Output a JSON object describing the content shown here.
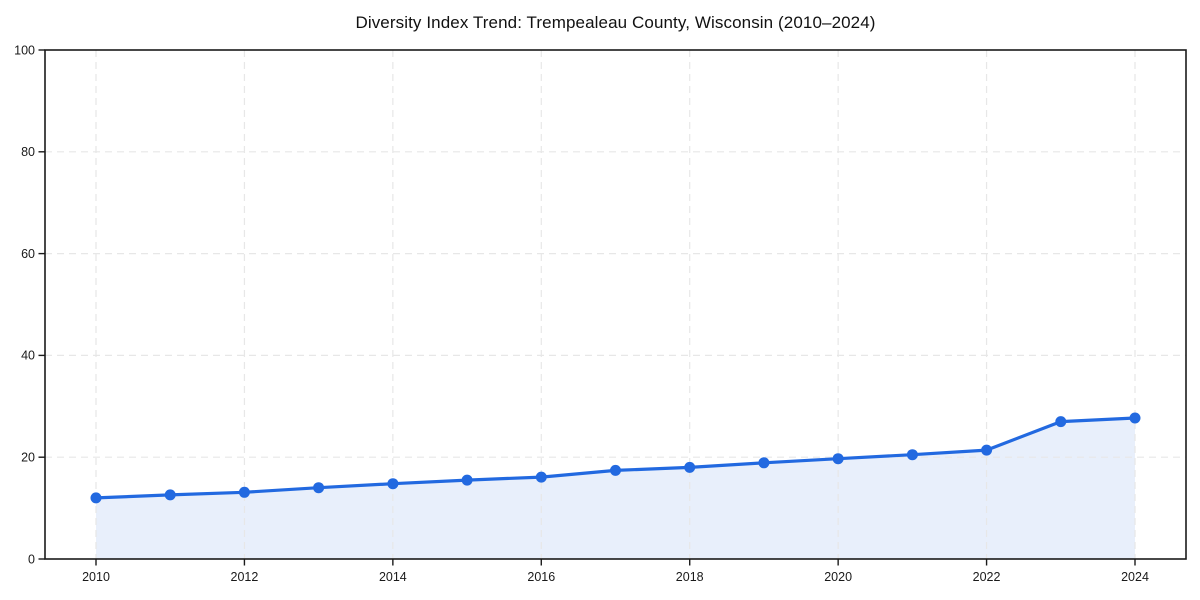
{
  "chart_data": {
    "type": "line",
    "title": "Diversity Index Trend: Trempealeau County, Wisconsin (2010–2024)",
    "xlabel": "",
    "ylabel": "",
    "x": [
      2010,
      2011,
      2012,
      2013,
      2014,
      2015,
      2016,
      2017,
      2018,
      2019,
      2020,
      2021,
      2022,
      2023,
      2024
    ],
    "series": [
      {
        "name": "Diversity Index",
        "values": [
          12.0,
          12.6,
          13.1,
          14.0,
          14.8,
          15.5,
          16.1,
          17.4,
          18.0,
          18.9,
          19.7,
          20.5,
          21.4,
          27.0,
          27.7
        ]
      }
    ],
    "xticks": [
      2010,
      2012,
      2014,
      2016,
      2018,
      2020,
      2022,
      2024
    ],
    "yticks": [
      0,
      20,
      40,
      60,
      80,
      100
    ],
    "xlim": [
      2009.3,
      2024.7
    ],
    "ylim": [
      0,
      100
    ],
    "grid": true,
    "grid_style": "dashed",
    "legend_position": "none",
    "area_under_line": true,
    "marker_shape": "circle",
    "colors": {
      "line": "#2269e0",
      "marker": "#2269e0",
      "area_fill": "#e8effb",
      "grid": "#e7e7e7",
      "axis": "#1a1a1a",
      "title": "#111111",
      "background": "#ffffff"
    }
  }
}
